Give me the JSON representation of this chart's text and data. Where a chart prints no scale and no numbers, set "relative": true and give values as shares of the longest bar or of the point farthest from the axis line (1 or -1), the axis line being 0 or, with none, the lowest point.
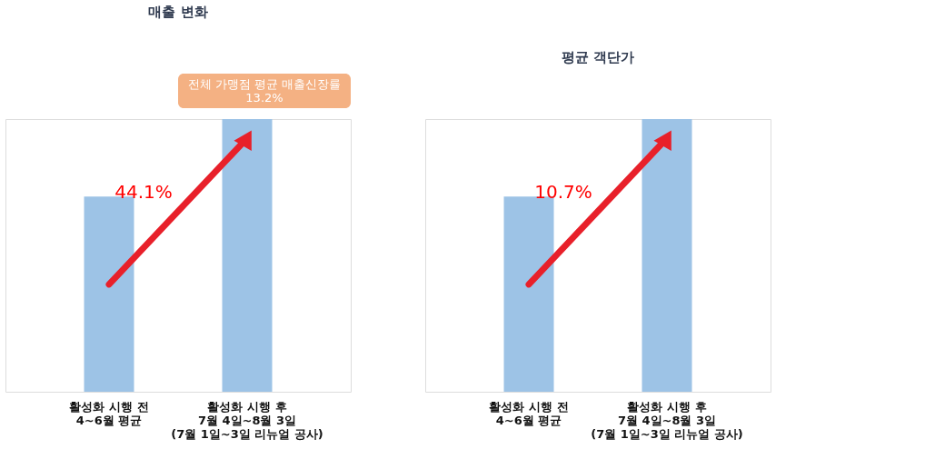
{
  "chart_data": [
    {
      "type": "bar",
      "title": "매출 변화",
      "relative": true,
      "categories": [
        "활성화 시행 전\n4~6월 평균",
        "활성화 시행 후\n7월 4일~8월 3일\n(7월 1일~3일 리뉴얼 공사)"
      ],
      "values": [
        0.716,
        1
      ],
      "color": "#9dc3e6",
      "annotations": [
        "44.1%",
        "전체 가맹점 평균 매출신장률\n13.2%"
      ]
    },
    {
      "type": "bar",
      "title": "평균 객단가",
      "relative": true,
      "categories": [
        "활성화 시행 전\n4~6월 평균",
        "활성화 시행 후\n7월 4일~8월 3일\n(7월 1일~3일 리뉴얼 공사)"
      ],
      "values": [
        0.716,
        1
      ],
      "color": "#9dc3e6",
      "annotations": [
        "10.7%"
      ]
    }
  ]
}
